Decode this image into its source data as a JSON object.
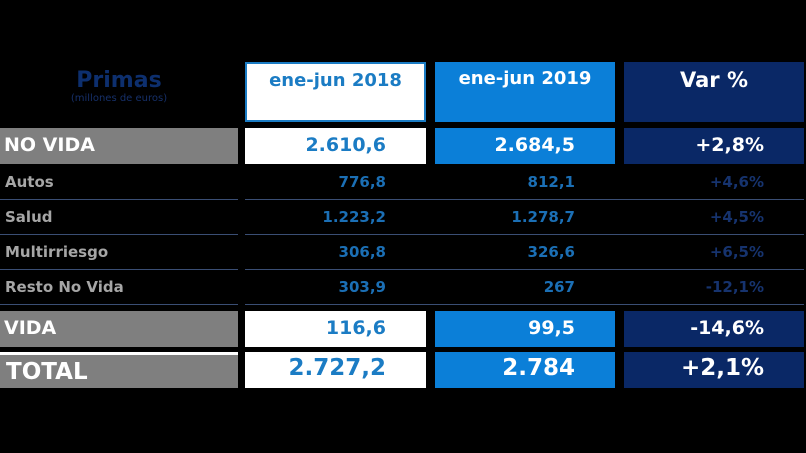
{
  "header": {
    "label_title": "Primas",
    "label_sub": "(millones de euros)",
    "col1": "ene-jun 2018",
    "col2": "ene-jun 2019",
    "col3": "Var %"
  },
  "rows": [
    {
      "label": "NO VIDA",
      "v2018": "2.610,6",
      "v2019": "2.684,5",
      "var": "+2,8%"
    },
    {
      "label": "Autos",
      "v2018": "776,8",
      "v2019": "812,1",
      "var": "+4,6%"
    },
    {
      "label": "Salud",
      "v2018": "1.223,2",
      "v2019": "1.278,7",
      "var": "+4,5%"
    },
    {
      "label": "Multirriesgo",
      "v2018": "306,8",
      "v2019": "326,6",
      "var": "+6,5%"
    },
    {
      "label": "Resto No Vida",
      "v2018": "303,9",
      "v2019": "267",
      "var": "-12,1%"
    },
    {
      "label": "VIDA",
      "v2018": "116,6",
      "v2019": "99,5",
      "var": "-14,6%"
    },
    {
      "label": "TOTAL",
      "v2018": "2.727,2",
      "v2019": "2.784",
      "var": "+2,1%"
    }
  ],
  "colors": {
    "white": "#ffffff",
    "blue": "#0b7fd8",
    "navy": "#0a2866",
    "gray": "#7f7f7f"
  }
}
